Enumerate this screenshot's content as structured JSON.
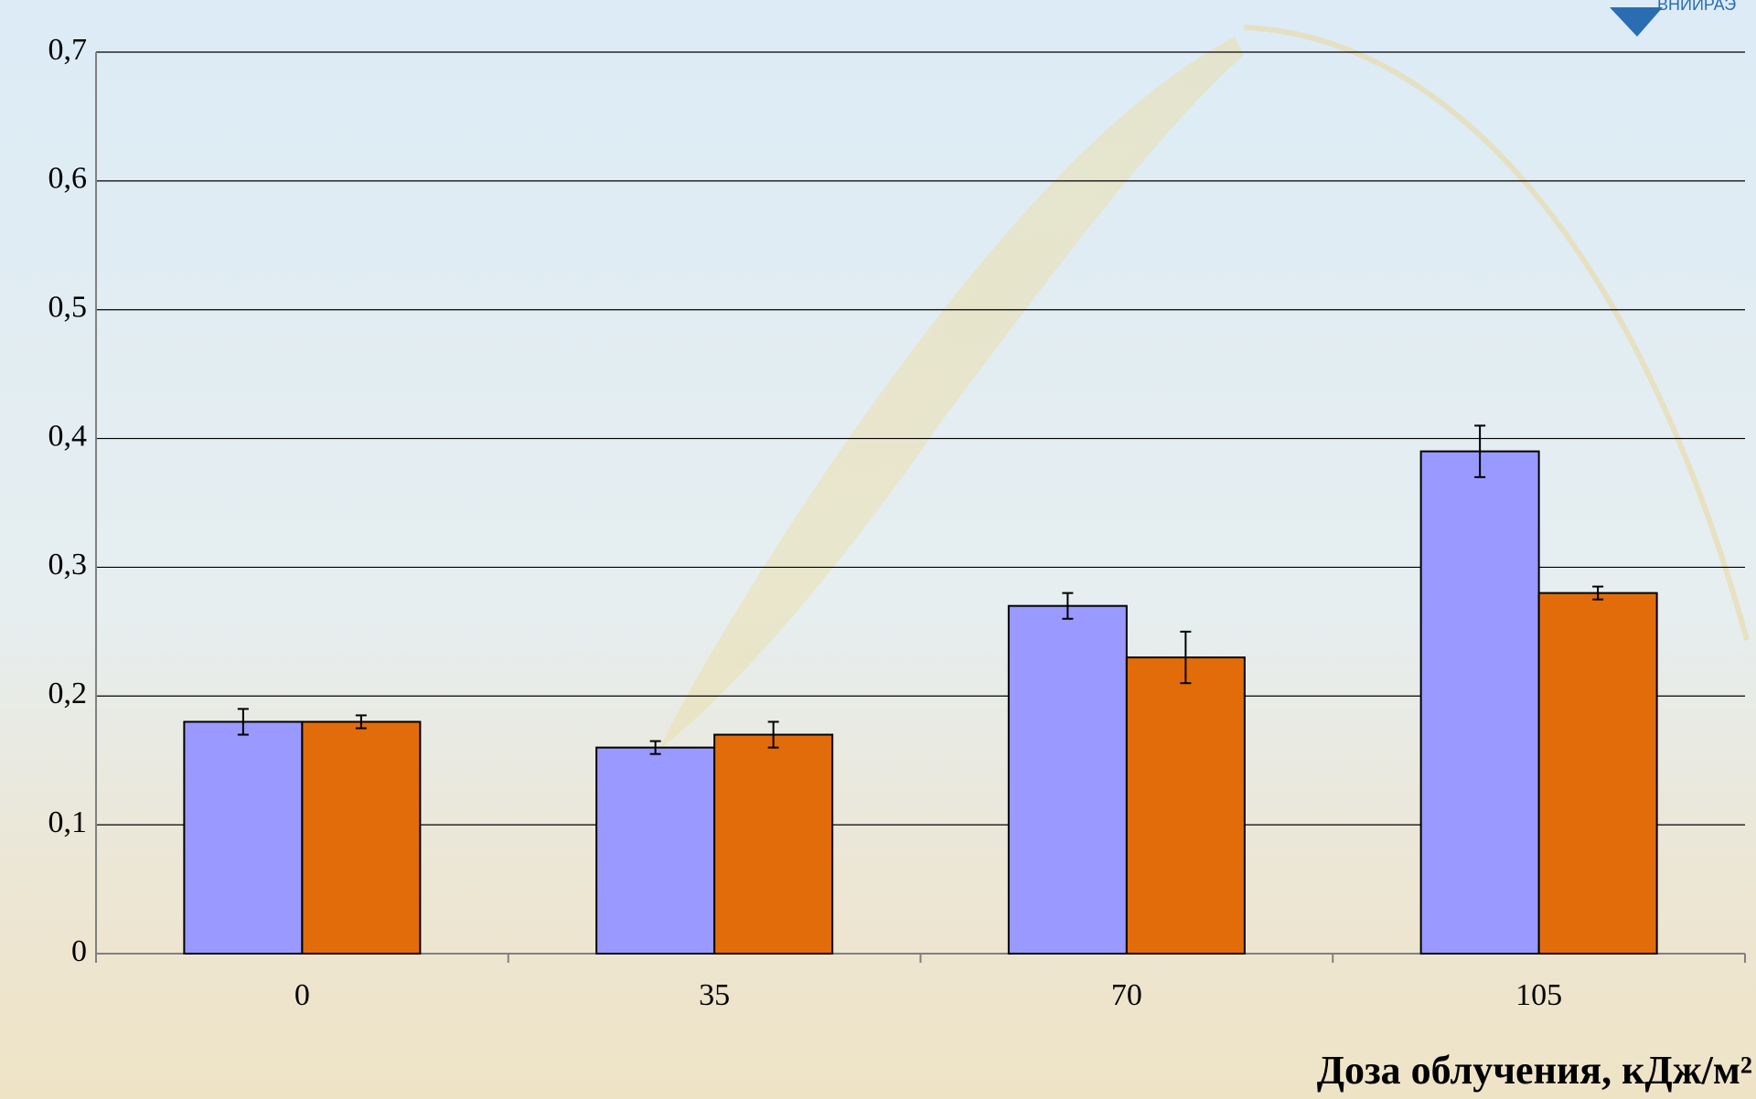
{
  "chart_data": {
    "type": "bar",
    "x_label": "Доза облучения, кДж/м²",
    "logo": "ВНИИРАЭ",
    "categories": [
      "0",
      "35",
      "70",
      "105"
    ],
    "series": [
      {
        "color": "#9999ff",
        "values": [
          0.18,
          0.16,
          0.27,
          0.39
        ],
        "errors": [
          0.01,
          0.005,
          0.01,
          0.02
        ]
      },
      {
        "color": "#e36c0a",
        "values": [
          0.18,
          0.17,
          0.23,
          0.28
        ],
        "errors": [
          0.005,
          0.01,
          0.02,
          0.005
        ]
      }
    ],
    "ylim": [
      0,
      0.7
    ],
    "yticks": [
      0,
      {
        "value": 0.1,
        "label": "0,1"
      },
      {
        "value": 0.2,
        "label": "0,2"
      },
      {
        "value": 0.3,
        "label": "0,3"
      },
      {
        "value": 0.4,
        "label": "0,4"
      },
      {
        "value": 0.5,
        "label": "0,5"
      },
      {
        "value": 0.6,
        "label": "0,6"
      },
      {
        "value": 0.7,
        "label": "0,7"
      }
    ],
    "grid": true
  }
}
